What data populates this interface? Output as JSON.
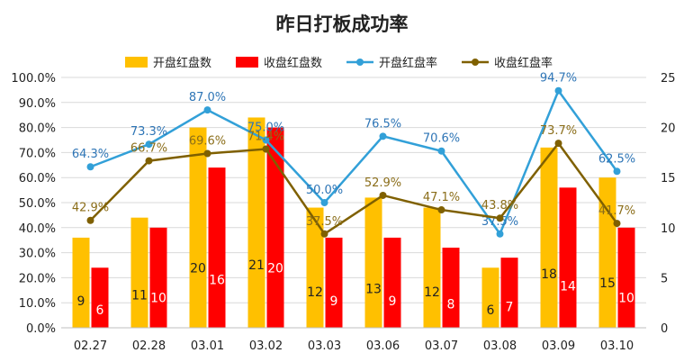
{
  "chart_data": {
    "type": "bar",
    "title": "昨日打板成功率",
    "categories": [
      "02.27",
      "02.28",
      "03.01",
      "03.02",
      "03.03",
      "03.06",
      "03.07",
      "03.08",
      "03.09",
      "03.10"
    ],
    "series": [
      {
        "name": "开盘红盘数",
        "type": "bar",
        "axis": "right",
        "color": "#ffc000",
        "values": [
          9,
          11,
          20,
          21,
          12,
          13,
          12,
          6,
          18,
          15
        ]
      },
      {
        "name": "收盘红盘数",
        "type": "bar",
        "axis": "right",
        "color": "#ff0000",
        "values": [
          6,
          10,
          16,
          20,
          9,
          9,
          8,
          7,
          14,
          10
        ]
      },
      {
        "name": "开盘红盘率",
        "type": "line",
        "axis": "left",
        "color": "#32a0d8",
        "label_color": "#2e75b6",
        "values": [
          64.3,
          73.3,
          87.0,
          75.0,
          50.0,
          76.5,
          70.6,
          37.5,
          94.7,
          62.5
        ]
      },
      {
        "name": "收盘红盘率",
        "type": "line",
        "axis": "left",
        "color": "#7f6000",
        "label_color": "#8b6e1a",
        "values": [
          42.9,
          66.7,
          69.6,
          71.4,
          37.5,
          52.9,
          47.1,
          43.8,
          73.7,
          41.7
        ]
      }
    ],
    "y_left": {
      "min": 0,
      "max": 100,
      "step": 10,
      "ticks": [
        "0.0%",
        "10.0%",
        "20.0%",
        "30.0%",
        "40.0%",
        "50.0%",
        "60.0%",
        "70.0%",
        "80.0%",
        "90.0%",
        "100.0%"
      ]
    },
    "y_right": {
      "min": 0,
      "max": 25,
      "step": 5,
      "ticks": [
        "0",
        "5",
        "10",
        "15",
        "20",
        "25"
      ]
    },
    "line_labels": {
      "开盘红盘率": [
        "64.3%",
        "73.3%",
        "87.0%",
        "75.0%",
        "50.0%",
        "76.5%",
        "70.6%",
        "37.5%",
        "94.7%",
        "62.5%"
      ],
      "收盘红盘率": [
        "42.9%",
        "66.7%",
        "69.6%",
        "71.4%",
        "37.5%",
        "52.9%",
        "47.1%",
        "43.8%",
        "73.7%",
        "41.7%"
      ]
    },
    "grid": true,
    "legend": "top"
  }
}
